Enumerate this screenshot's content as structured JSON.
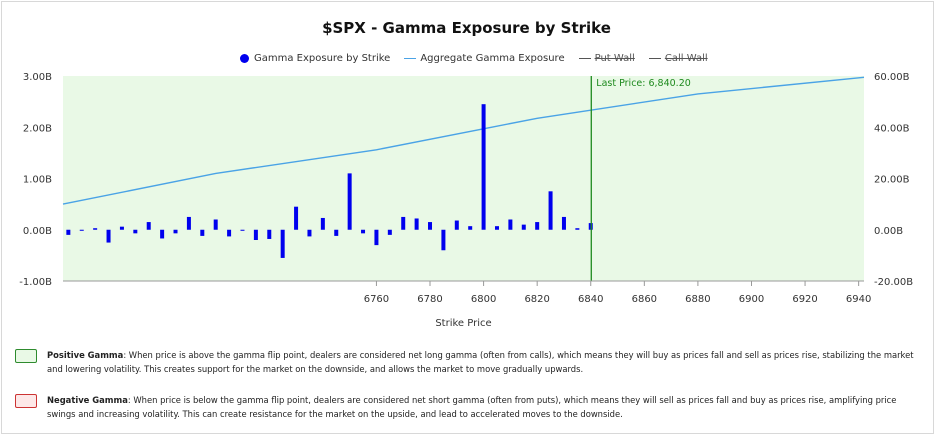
{
  "chart_data": {
    "type": "bar",
    "title": "$SPX - Gamma Exposure by Strike",
    "xlabel": "Strike Price",
    "ylabel_left": "",
    "ylabel_right": "",
    "xlim": [
      6643,
      6942
    ],
    "ylim_left": [
      -1.0,
      3.0
    ],
    "ylim_right": [
      -20.0,
      60.0
    ],
    "xticks": [
      6760,
      6780,
      6800,
      6820,
      6840,
      6860,
      6880,
      6900,
      6920,
      6940
    ],
    "yticks_left": [
      {
        "value": 3.0,
        "label": "3.00B"
      },
      {
        "value": 2.0,
        "label": "2.00B"
      },
      {
        "value": 1.0,
        "label": "1.00B"
      },
      {
        "value": 0.0,
        "label": "0.00B"
      },
      {
        "value": -1.0,
        "label": "-1.00B"
      }
    ],
    "yticks_right": [
      {
        "value": 60,
        "label": "60.00B"
      },
      {
        "value": 40,
        "label": "40.00B"
      },
      {
        "value": 20,
        "label": "20.00B"
      },
      {
        "value": 0,
        "label": "0.00B"
      },
      {
        "value": -20,
        "label": "-20.00B"
      }
    ],
    "legend": [
      {
        "name": "Gamma Exposure by Strike",
        "kind": "dot",
        "color": "#0000ee",
        "struck": false
      },
      {
        "name": "Aggregate Gamma Exposure",
        "kind": "line",
        "color": "#4aa3e6",
        "struck": false
      },
      {
        "name": "Put Wall",
        "kind": "line",
        "color": "#555555",
        "struck": true
      },
      {
        "name": "Call Wall",
        "kind": "line",
        "color": "#555555",
        "struck": true
      }
    ],
    "last_price": {
      "value": 6840.2,
      "label": "Last Price: 6,840.20",
      "color": "#1e8a1e"
    },
    "series": [
      {
        "name": "Gamma Exposure by Strike",
        "color": "#0000ee",
        "points": [
          {
            "x": 6645,
            "y": -0.1
          },
          {
            "x": 6650,
            "y": -0.02
          },
          {
            "x": 6655,
            "y": 0.03
          },
          {
            "x": 6660,
            "y": -0.25
          },
          {
            "x": 6665,
            "y": 0.06
          },
          {
            "x": 6670,
            "y": -0.07
          },
          {
            "x": 6675,
            "y": 0.15
          },
          {
            "x": 6680,
            "y": -0.17
          },
          {
            "x": 6685,
            "y": -0.07
          },
          {
            "x": 6690,
            "y": 0.25
          },
          {
            "x": 6695,
            "y": -0.12
          },
          {
            "x": 6700,
            "y": 0.2
          },
          {
            "x": 6705,
            "y": -0.13
          },
          {
            "x": 6710,
            "y": -0.02
          },
          {
            "x": 6715,
            "y": -0.2
          },
          {
            "x": 6720,
            "y": -0.18
          },
          {
            "x": 6725,
            "y": -0.55
          },
          {
            "x": 6730,
            "y": 0.45
          },
          {
            "x": 6735,
            "y": -0.13
          },
          {
            "x": 6740,
            "y": 0.23
          },
          {
            "x": 6745,
            "y": -0.12
          },
          {
            "x": 6750,
            "y": 1.1
          },
          {
            "x": 6755,
            "y": -0.07
          },
          {
            "x": 6760,
            "y": -0.3
          },
          {
            "x": 6765,
            "y": -0.1
          },
          {
            "x": 6770,
            "y": 0.25
          },
          {
            "x": 6775,
            "y": 0.22
          },
          {
            "x": 6780,
            "y": 0.15
          },
          {
            "x": 6785,
            "y": -0.4
          },
          {
            "x": 6790,
            "y": 0.18
          },
          {
            "x": 6795,
            "y": 0.07
          },
          {
            "x": 6800,
            "y": 2.45
          },
          {
            "x": 6805,
            "y": 0.07
          },
          {
            "x": 6810,
            "y": 0.2
          },
          {
            "x": 6815,
            "y": 0.1
          },
          {
            "x": 6820,
            "y": 0.15
          },
          {
            "x": 6825,
            "y": 0.75
          },
          {
            "x": 6830,
            "y": 0.25
          },
          {
            "x": 6835,
            "y": 0.03
          },
          {
            "x": 6840,
            "y": 0.13
          }
        ]
      },
      {
        "name": "Aggregate Gamma Exposure",
        "axis": "right",
        "color": "#4aa3e6",
        "points": [
          {
            "x": 6643,
            "y": 10.0
          },
          {
            "x": 6700,
            "y": 22.0
          },
          {
            "x": 6760,
            "y": 31.2
          },
          {
            "x": 6820,
            "y": 43.5
          },
          {
            "x": 6880,
            "y": 53.0
          },
          {
            "x": 6942,
            "y": 59.5
          }
        ]
      }
    ]
  },
  "notes": {
    "positive": {
      "label": "Positive Gamma",
      "text": ": When price is above the gamma flip point, dealers are considered net long gamma (often from calls), which means they will buy as prices fall and sell as prices rise, stabilizing the market and lowering volatility. This creates support for the market on the downside, and allows the market to move gradually upwards.",
      "fill": "#e9f9e6",
      "border": "#2e8b2e"
    },
    "negative": {
      "label": "Negative Gamma",
      "text": ": When price is below the gamma flip point, dealers are considered net short gamma (often from puts), which means they will sell as prices fall and buy as prices rise, amplifying price swings and increasing volatility. This can create resistance for the market on the upside, and lead to accelerated moves to the downside.",
      "fill": "#fde8e8",
      "border": "#cc3333"
    }
  }
}
